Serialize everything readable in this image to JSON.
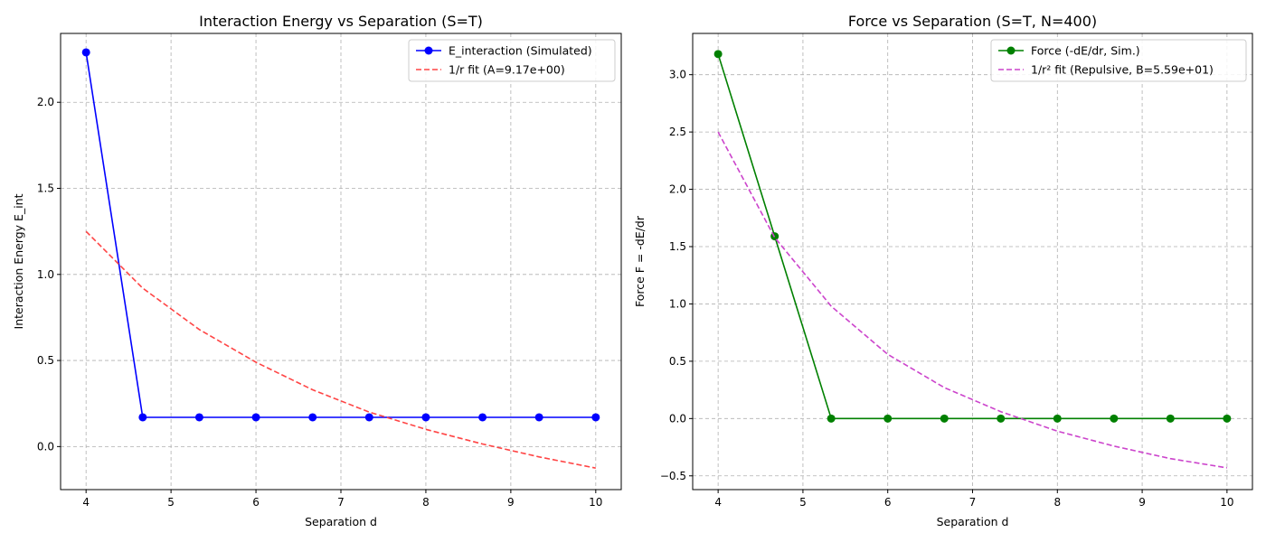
{
  "chart_data": [
    {
      "type": "line",
      "title": "Interaction Energy vs Separation (S=T)",
      "xlabel": "Separation d",
      "ylabel": "Interaction Energy E_int",
      "xlim": [
        3.7,
        10.3
      ],
      "ylim": [
        -0.25,
        2.4
      ],
      "xticks": [
        4,
        5,
        6,
        7,
        8,
        9,
        10
      ],
      "yticks": [
        0.0,
        0.5,
        1.0,
        1.5,
        2.0
      ],
      "ytick_labels": [
        "0.0",
        "0.5",
        "1.0",
        "1.5",
        "2.0"
      ],
      "grid": true,
      "legend_position": "top-right",
      "series": [
        {
          "name": "E_interaction (Simulated)",
          "color": "#0000ff",
          "style": "solid",
          "marker": true,
          "x": [
            4.0,
            4.667,
            5.333,
            6.0,
            6.667,
            7.333,
            8.0,
            8.667,
            9.333,
            10.0
          ],
          "y": [
            2.29,
            0.17,
            0.17,
            0.17,
            0.17,
            0.17,
            0.17,
            0.17,
            0.17,
            0.17
          ]
        },
        {
          "name": "1/r fit (A=9.17e+00)",
          "color": "#ff4444",
          "style": "dashed",
          "marker": false,
          "x": [
            4.0,
            4.667,
            5.333,
            6.0,
            6.667,
            7.333,
            8.0,
            8.667,
            9.333,
            10.0
          ],
          "y": [
            1.25,
            0.92,
            0.68,
            0.49,
            0.33,
            0.2,
            0.1,
            0.015,
            -0.06,
            -0.125
          ]
        }
      ]
    },
    {
      "type": "line",
      "title": "Force vs Separation (S=T, N=400)",
      "xlabel": "Separation d",
      "ylabel": "Force F = -dE/dr",
      "xlim": [
        3.7,
        10.3
      ],
      "ylim": [
        -0.62,
        3.36
      ],
      "xticks": [
        4,
        5,
        6,
        7,
        8,
        9,
        10
      ],
      "yticks": [
        -0.5,
        0.0,
        0.5,
        1.0,
        1.5,
        2.0,
        2.5,
        3.0
      ],
      "ytick_labels": [
        "−0.5",
        "0.0",
        "0.5",
        "1.0",
        "1.5",
        "2.0",
        "2.5",
        "3.0"
      ],
      "grid": true,
      "legend_position": "top-right",
      "series": [
        {
          "name": "Force (-dE/dr, Sim.)",
          "color": "#008000",
          "style": "solid",
          "marker": true,
          "x": [
            4.0,
            4.667,
            5.333,
            6.0,
            6.667,
            7.333,
            8.0,
            8.667,
            9.333,
            10.0
          ],
          "y": [
            3.18,
            1.59,
            0.0,
            0.0,
            0.0,
            0.0,
            0.0,
            0.0,
            0.0,
            0.0
          ]
        },
        {
          "name": "1/r² fit (Repulsive, B=5.59e+01)",
          "color": "#cc44cc",
          "style": "dashed",
          "marker": false,
          "x": [
            4.0,
            4.667,
            5.333,
            6.0,
            6.667,
            7.333,
            8.0,
            8.667,
            9.333,
            10.0
          ],
          "y": [
            2.5,
            1.58,
            0.98,
            0.56,
            0.27,
            0.06,
            -0.11,
            -0.24,
            -0.35,
            -0.43
          ]
        }
      ]
    }
  ]
}
